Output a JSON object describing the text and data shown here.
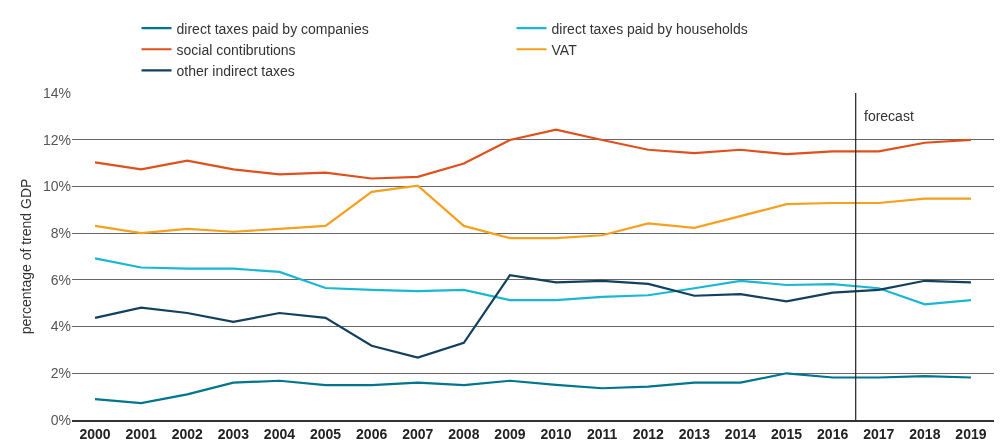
{
  "chart_data": {
    "type": "line",
    "ylabel": "percentage of trend GDP",
    "x": [
      2000,
      2001,
      2002,
      2003,
      2004,
      2005,
      2006,
      2007,
      2008,
      2009,
      2010,
      2011,
      2012,
      2013,
      2014,
      2015,
      2016,
      2017,
      2018,
      2019
    ],
    "xlim": [
      1999.5,
      2019.5
    ],
    "xticks": [
      2000,
      2001,
      2002,
      2003,
      2004,
      2005,
      2006,
      2007,
      2008,
      2009,
      2010,
      2011,
      2012,
      2013,
      2014,
      2015,
      2016,
      2017,
      2018,
      2019
    ],
    "ylim": [
      0,
      14
    ],
    "yticks": [
      {
        "value": 0,
        "label": "0%"
      },
      {
        "value": 2,
        "label": "2%"
      },
      {
        "value": 4,
        "label": "4%"
      },
      {
        "value": 6,
        "label": "6%"
      },
      {
        "value": 8,
        "label": "8%"
      },
      {
        "value": 10,
        "label": "10%"
      },
      {
        "value": 12,
        "label": "12%"
      },
      {
        "value": 14,
        "label": "14%"
      }
    ],
    "grid": "y",
    "legend": "top left",
    "marker": "none",
    "line_style": "solid",
    "series": [
      {
        "name": "direct taxes paid by companies",
        "color": "#00758f",
        "values": [
          0.89,
          0.72,
          1.1,
          1.6,
          1.68,
          1.49,
          1.49,
          1.6,
          1.49,
          1.68,
          1.5,
          1.36,
          1.43,
          1.6,
          1.6,
          2.0,
          1.82,
          1.82,
          1.88,
          1.82
        ]
      },
      {
        "name": "direct taxes paid by households",
        "color": "#1ab7d3",
        "values": [
          6.92,
          6.53,
          6.48,
          6.48,
          6.34,
          5.65,
          5.57,
          5.52,
          5.57,
          5.13,
          5.13,
          5.27,
          5.34,
          5.64,
          5.96,
          5.78,
          5.82,
          5.64,
          4.95,
          5.13
        ]
      },
      {
        "name": "social contibrutions",
        "color": "#e0501b",
        "values": [
          11.03,
          10.73,
          11.1,
          10.73,
          10.52,
          10.59,
          10.34,
          10.41,
          10.98,
          11.99,
          12.43,
          11.99,
          11.57,
          11.43,
          11.57,
          11.38,
          11.5,
          11.5,
          11.87,
          11.99
        ]
      },
      {
        "name": "VAT",
        "color": "#f5a01f",
        "values": [
          8.31,
          8.0,
          8.18,
          8.06,
          8.18,
          8.31,
          9.77,
          10.03,
          8.31,
          7.79,
          7.79,
          7.91,
          8.42,
          8.23,
          8.73,
          9.24,
          9.29,
          9.29,
          9.48,
          9.48
        ]
      },
      {
        "name": "other indirect taxes",
        "color": "#12405e",
        "values": [
          4.37,
          4.81,
          4.58,
          4.2,
          4.58,
          4.37,
          3.18,
          2.67,
          3.3,
          6.2,
          5.89,
          5.96,
          5.83,
          5.32,
          5.39,
          5.08,
          5.45,
          5.57,
          5.96,
          5.89
        ]
      }
    ],
    "ref_lines": [
      {
        "axis": "x",
        "value": 2016.5,
        "label": "forecast",
        "color": "#222222"
      }
    ]
  }
}
